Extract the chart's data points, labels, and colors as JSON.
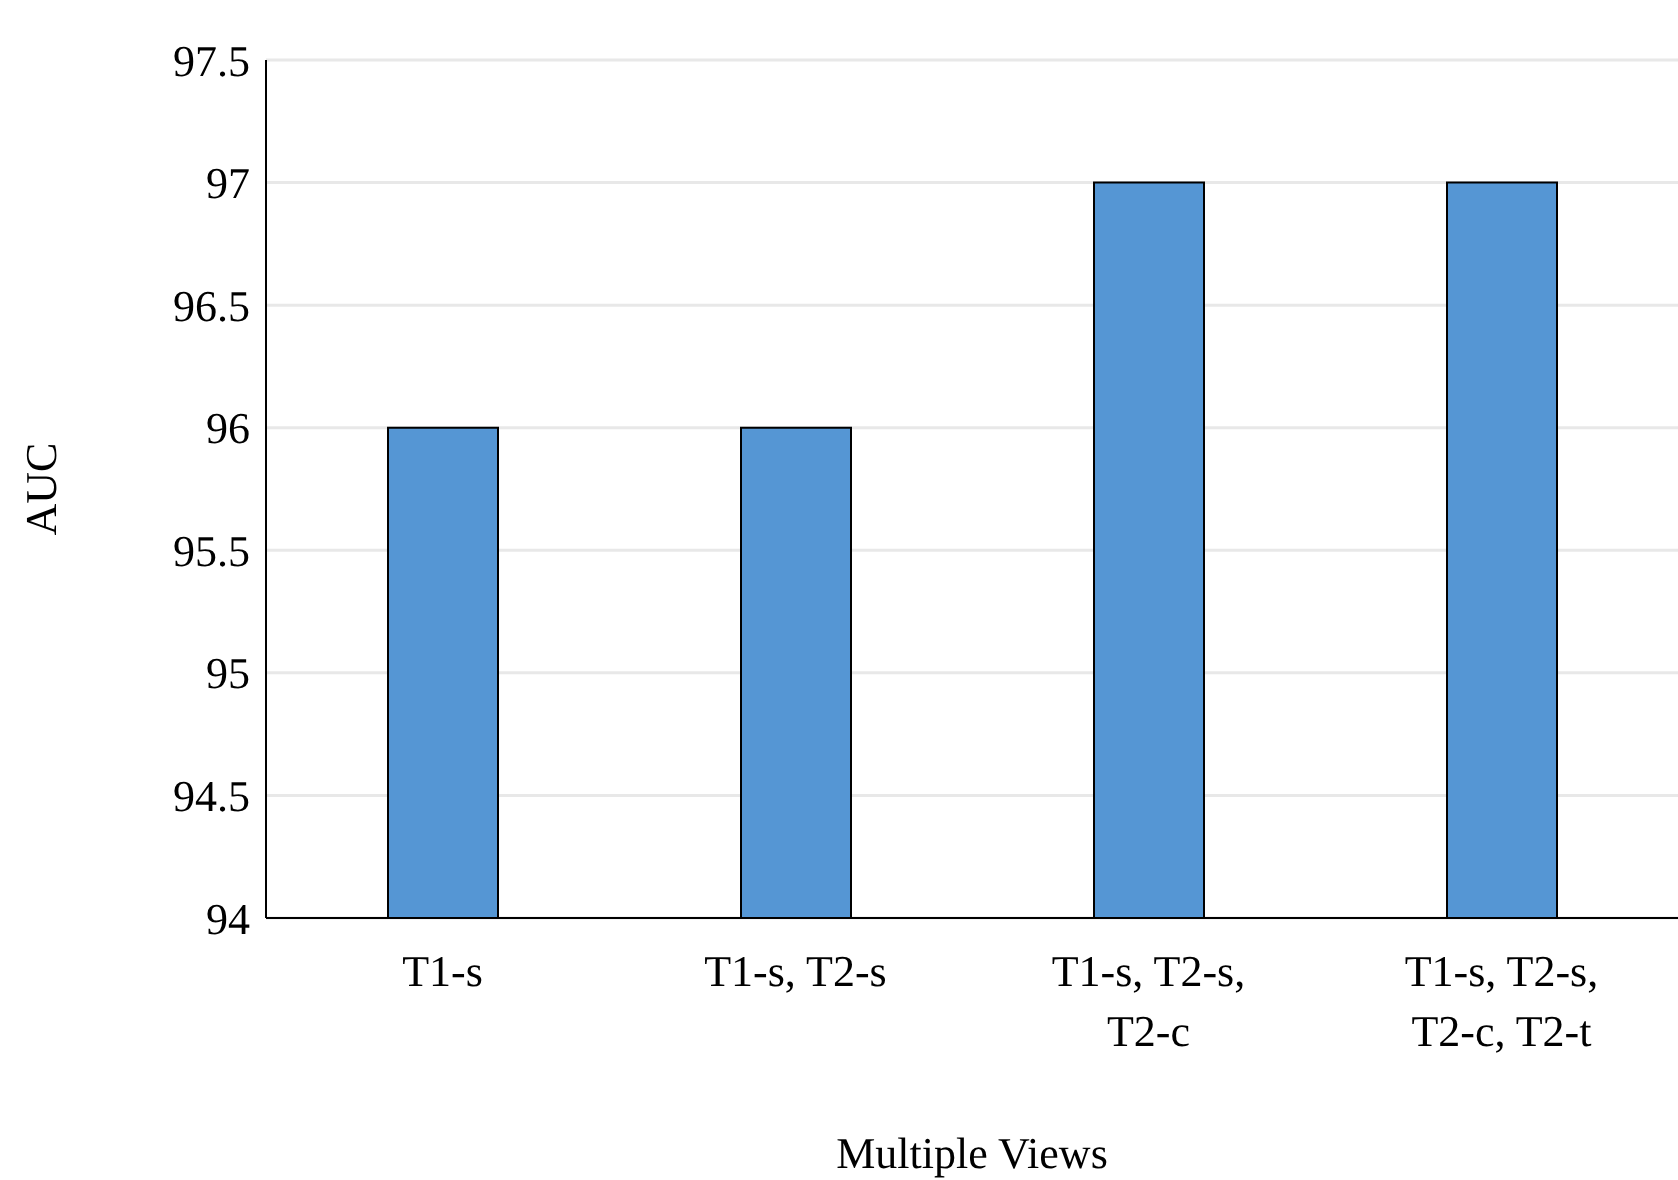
{
  "chart_data": {
    "type": "bar",
    "xlabel": "Multiple Views",
    "ylabel": "AUC",
    "categories": [
      "T1-s",
      "T1-s, T2-s",
      "T1-s, T2-s, T2-c",
      "T1-s, T2-s, T2-c, T2-t"
    ],
    "values": [
      96,
      96,
      97,
      97
    ],
    "color": "#5596d4",
    "ylim": [
      94,
      97.5
    ],
    "yticks": [
      94,
      94.5,
      95,
      95.5,
      96,
      96.5,
      97,
      97.5
    ],
    "grid": "y"
  }
}
